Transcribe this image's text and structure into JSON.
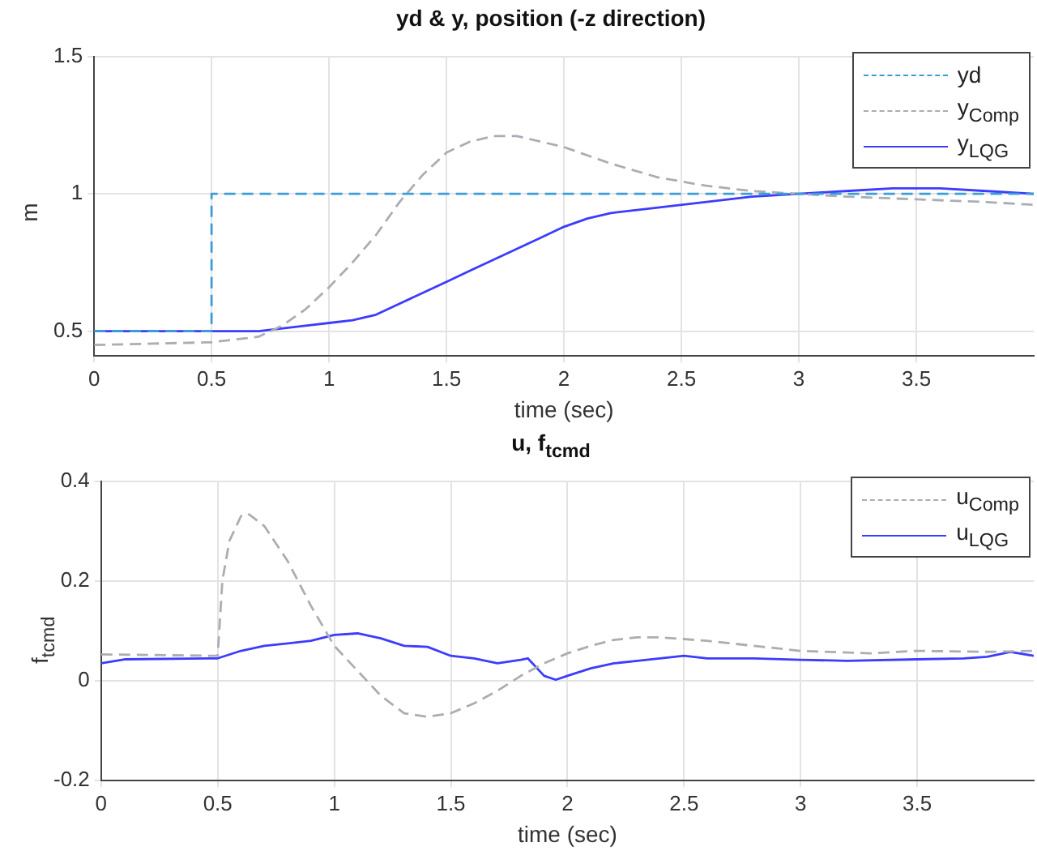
{
  "chart_data": [
    {
      "type": "line",
      "title": "yd & y, position (-z direction)",
      "xlabel": "time (sec)",
      "ylabel": "m",
      "xlim": [
        0,
        4
      ],
      "xticks": [
        0,
        0.5,
        1,
        1.5,
        2,
        2.5,
        3,
        3.5
      ],
      "ylim": [
        0.41,
        1.5
      ],
      "yticks": [
        0.5,
        1,
        1.5
      ],
      "grid": true,
      "legend": "top right",
      "marker": "none",
      "series": [
        {
          "name": "yd",
          "color": "#3d9bd6",
          "line_style": "dashed",
          "x": [
            0,
            0.5,
            0.5,
            4
          ],
          "values": [
            0.5,
            0.5,
            1,
            1
          ]
        },
        {
          "name": "y$_{Comp}$",
          "color": "#a9aeb5",
          "line_style": "dashed",
          "x": [
            0,
            0.5,
            0.7,
            0.8,
            0.9,
            1.0,
            1.1,
            1.2,
            1.3,
            1.4,
            1.5,
            1.6,
            1.7,
            1.8,
            1.9,
            2.0,
            2.2,
            2.4,
            2.6,
            2.8,
            3.0,
            3.2,
            3.5,
            3.8,
            4.0
          ],
          "values": [
            0.45,
            0.46,
            0.48,
            0.52,
            0.58,
            0.66,
            0.75,
            0.85,
            0.97,
            1.07,
            1.15,
            1.19,
            1.21,
            1.21,
            1.19,
            1.17,
            1.11,
            1.06,
            1.03,
            1.01,
            1.0,
            0.99,
            0.98,
            0.97,
            0.96
          ]
        },
        {
          "name": "y$_{LQG}$",
          "color": "#3c3cff",
          "line_style": "solid",
          "x": [
            0,
            0.7,
            0.9,
            1.0,
            1.1,
            1.2,
            1.3,
            1.4,
            1.5,
            1.6,
            1.7,
            1.8,
            1.9,
            2.0,
            2.1,
            2.2,
            2.4,
            2.6,
            2.8,
            3.0,
            3.2,
            3.4,
            3.6,
            3.8,
            4.0
          ],
          "values": [
            0.5,
            0.5,
            0.52,
            0.53,
            0.54,
            0.56,
            0.6,
            0.64,
            0.68,
            0.72,
            0.76,
            0.8,
            0.84,
            0.88,
            0.91,
            0.93,
            0.95,
            0.97,
            0.99,
            1.0,
            1.01,
            1.02,
            1.02,
            1.01,
            1.0
          ]
        }
      ]
    },
    {
      "type": "line",
      "title": "u, f$_{tcmd}$",
      "xlabel": "time (sec)",
      "ylabel": "f$_{tcmd}$",
      "xlim": [
        0,
        4
      ],
      "xticks": [
        0,
        0.5,
        1,
        1.5,
        2,
        2.5,
        3,
        3.5
      ],
      "ylim": [
        -0.2,
        0.4
      ],
      "yticks": [
        -0.2,
        0,
        0.2,
        0.4
      ],
      "grid": true,
      "legend": "top right",
      "marker": "none",
      "series": [
        {
          "name": "u$_{Comp}$",
          "color": "#a9aeb5",
          "line_style": "dashed",
          "x": [
            0,
            0.5,
            0.52,
            0.55,
            0.6,
            0.63,
            0.7,
            0.8,
            0.9,
            1.0,
            1.1,
            1.2,
            1.3,
            1.4,
            1.5,
            1.6,
            1.7,
            1.8,
            1.9,
            2.0,
            2.1,
            2.2,
            2.3,
            2.4,
            2.6,
            2.8,
            3.0,
            3.3,
            3.5,
            3.8,
            4.0
          ],
          "values": [
            0.053,
            0.05,
            0.2,
            0.28,
            0.33,
            0.335,
            0.31,
            0.24,
            0.15,
            0.07,
            0.02,
            -0.03,
            -0.065,
            -0.072,
            -0.065,
            -0.045,
            -0.02,
            0.01,
            0.035,
            0.055,
            0.07,
            0.082,
            0.087,
            0.087,
            0.08,
            0.07,
            0.06,
            0.055,
            0.06,
            0.058,
            0.06
          ]
        },
        {
          "name": "u$_{LQG}$",
          "color": "#3c3cff",
          "line_style": "solid",
          "x": [
            0,
            0.1,
            0.5,
            0.6,
            0.7,
            0.8,
            0.9,
            1.0,
            1.1,
            1.2,
            1.3,
            1.4,
            1.5,
            1.6,
            1.7,
            1.8,
            1.83,
            1.9,
            1.95,
            2.0,
            2.1,
            2.2,
            2.3,
            2.5,
            2.6,
            2.8,
            3.0,
            3.2,
            3.5,
            3.7,
            3.8,
            3.9,
            4.0
          ],
          "values": [
            0.035,
            0.043,
            0.045,
            0.06,
            0.07,
            0.075,
            0.08,
            0.092,
            0.095,
            0.085,
            0.07,
            0.068,
            0.05,
            0.045,
            0.035,
            0.042,
            0.045,
            0.01,
            0.002,
            0.01,
            0.025,
            0.035,
            0.04,
            0.05,
            0.045,
            0.045,
            0.042,
            0.04,
            0.043,
            0.045,
            0.048,
            0.058,
            0.05
          ]
        }
      ]
    }
  ]
}
